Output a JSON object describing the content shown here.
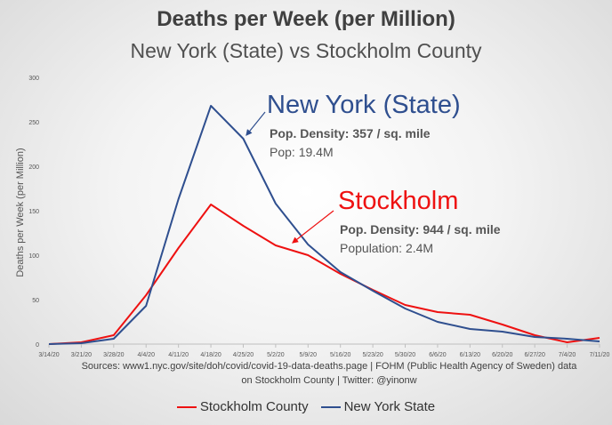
{
  "chart_data": {
    "type": "line",
    "title": "Deaths per Week (per Million)",
    "subtitle": "New York (State) vs Stockholm County",
    "xlabel": "",
    "ylabel": "Deaths per Week (per Million)",
    "ylim": [
      0,
      300
    ],
    "yticks": [
      "0",
      "50",
      "100",
      "150",
      "200",
      "250",
      "300"
    ],
    "categories": [
      "3/14/20",
      "3/21/20",
      "3/28/20",
      "4/4/20",
      "4/11/20",
      "4/18/20",
      "4/25/20",
      "5/2/20",
      "5/9/20",
      "5/16/20",
      "5/23/20",
      "5/30/20",
      "6/6/20",
      "6/13/20",
      "6/20/20",
      "6/27/20",
      "7/4/20",
      "7/11/20"
    ],
    "series": [
      {
        "name": "Stockholm County",
        "color": "#ee1111",
        "values": [
          0,
          2,
          10,
          55,
          108,
          157,
          133,
          111,
          100,
          79,
          61,
          44,
          36,
          33,
          22,
          10,
          2,
          7
        ]
      },
      {
        "name": "New York State",
        "color": "#2f4f8f",
        "values": [
          0,
          1,
          6,
          43,
          163,
          268,
          231,
          158,
          112,
          81,
          60,
          40,
          25,
          17,
          14,
          8,
          6,
          3
        ]
      }
    ],
    "grid": false,
    "legend": "bottom",
    "source": "Sources: www1.nyc.gov/site/doh/covid/covid-19-data-deaths.page | FOHM (Public Health Agency of Sweden) data on Stockholm County  | Twitter: @yinonw",
    "annotations": {
      "ny_name": "New York (State)",
      "ny_density": "Pop. Density: 357 / sq. mile",
      "ny_pop": "Pop: 19.4M",
      "st_name": "Stockholm",
      "st_density": "Pop. Density: 944 / sq. mile",
      "st_pop": "Population: 2.4M"
    }
  }
}
